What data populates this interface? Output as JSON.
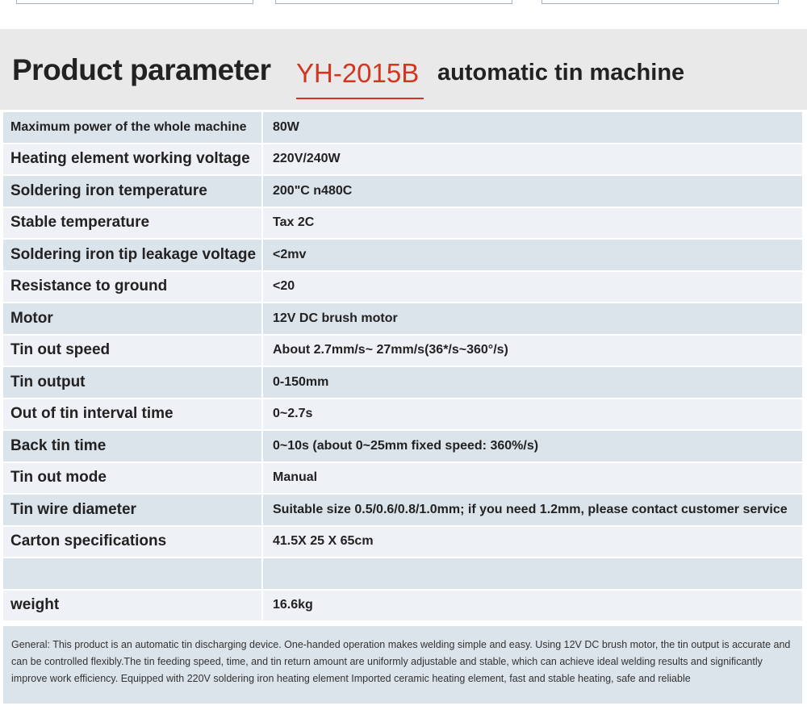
{
  "header": {
    "title": "Product parameter",
    "model": "YH-2015B",
    "subtitle": "automatic tin machine"
  },
  "rows": [
    {
      "label": "Maximum power of the whole machine",
      "value": "80W"
    },
    {
      "label": "Heating element working voltage",
      "value": "220V/240W"
    },
    {
      "label": "Soldering iron temperature",
      "value": "200\"C n480C"
    },
    {
      "label": "Stable temperature",
      "value": "Tax 2C"
    },
    {
      "label": "Soldering iron tip leakage voltage",
      "value": "<2mv"
    },
    {
      "label": "Resistance to ground",
      "value": "<20"
    },
    {
      "label": "Motor",
      "value": "12V DC brush motor"
    },
    {
      "label": "Tin out speed",
      "value": "About 2.7mm/s~ 27mm/s(36*/s~360°/s)"
    },
    {
      "label": "Tin output",
      "value": "0-150mm"
    },
    {
      "label": "Out of tin interval time",
      "value": "0~2.7s"
    },
    {
      "label": "Back tin time",
      "value": "0~10s (about 0~25mm fixed speed: 360%/s)"
    },
    {
      "label": "Tin out mode",
      "value": "Manual"
    },
    {
      "label": "Tin wire diameter",
      "value": "Suitable size 0.5/0.6/0.8/1.0mm; if you need 1.2mm, please contact customer service"
    },
    {
      "label": "Carton specifications",
      "value": "41.5X 25 X 65cm"
    },
    {
      "label": "",
      "value": ""
    },
    {
      "label": "weight",
      "value": "16.6kg"
    }
  ],
  "description": "General: This product is an automatic tin discharging device. One-handed operation makes welding simple and easy. Using 12V DC brush motor, the tin output is accurate and can be controlled flexibly.The tin feeding speed, time, and tin return amount are uniformly adjustable and stable, which can achieve ideal welding results and significantly improve work efficiency. Equipped with 220V soldering iron heating element  Imported ceramic heating element, fast and stable heating, safe and reliable"
}
